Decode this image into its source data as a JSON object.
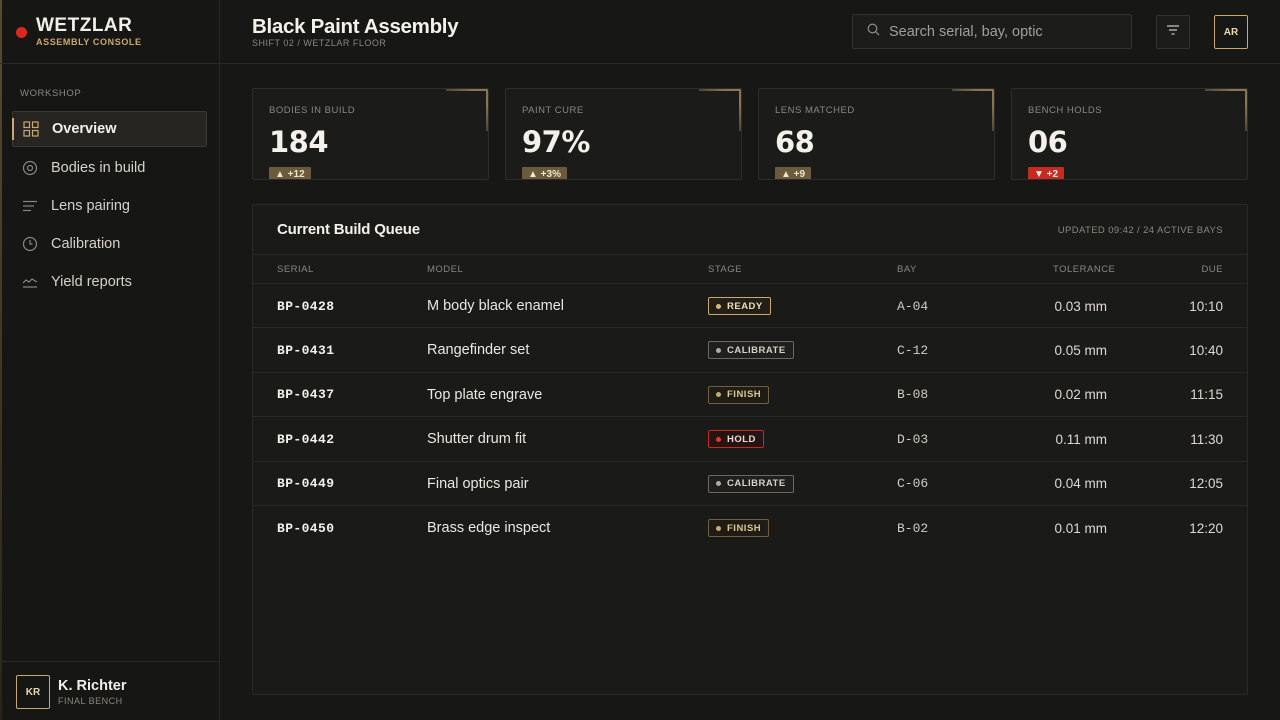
{
  "brand": {
    "name": "WETZLAR",
    "subtitle": "ASSEMBLY CONSOLE",
    "accent": "#c9a96e",
    "dot_color": "#d9281f"
  },
  "sidebar": {
    "section": "WORKSHOP",
    "items": [
      {
        "label": "Overview",
        "icon": "grid-icon",
        "active": true
      },
      {
        "label": "Bodies in build",
        "icon": "target-icon",
        "active": false
      },
      {
        "label": "Lens pairing",
        "icon": "lines-icon",
        "active": false
      },
      {
        "label": "Calibration",
        "icon": "clock-icon",
        "active": false
      },
      {
        "label": "Yield reports",
        "icon": "wave-chart-icon",
        "active": false
      }
    ],
    "user": {
      "initials": "KR",
      "name": "K. Richter",
      "role": "FINAL BENCH"
    }
  },
  "header": {
    "title": "Black Paint Assembly",
    "subtitle": "SHIFT 02 / WETZLAR FLOOR",
    "search_placeholder": "Search serial, bay, optic",
    "avatar_initials": "AR"
  },
  "kpis": [
    {
      "label": "BODIES IN BUILD",
      "value": "184",
      "delta": "▲ +12",
      "trend": "up"
    },
    {
      "label": "PAINT CURE",
      "value": "97%",
      "delta": "▲ +3%",
      "trend": "up"
    },
    {
      "label": "LENS MATCHED",
      "value": "68",
      "delta": "▲ +9",
      "trend": "up"
    },
    {
      "label": "BENCH HOLDS",
      "value": "06",
      "delta": "▼ +2",
      "trend": "down"
    }
  ],
  "queue": {
    "title": "Current Build Queue",
    "meta": "UPDATED 09:42 / 24 ACTIVE BAYS",
    "columns": {
      "serial": "SERIAL",
      "model": "MODEL",
      "stage": "STAGE",
      "bay": "BAY",
      "tolerance": "TOLERANCE",
      "due": "DUE"
    },
    "rows": [
      {
        "serial": "BP-0428",
        "model": "M body black enamel",
        "stage": "READY",
        "stage_type": "ready",
        "bay": "A-04",
        "tolerance": "0.03 mm",
        "due": "10:10"
      },
      {
        "serial": "BP-0431",
        "model": "Rangefinder set",
        "stage": "CALIBRATE",
        "stage_type": "calibrate",
        "bay": "C-12",
        "tolerance": "0.05 mm",
        "due": "10:40"
      },
      {
        "serial": "BP-0437",
        "model": "Top plate engrave",
        "stage": "FINISH",
        "stage_type": "finish",
        "bay": "B-08",
        "tolerance": "0.02 mm",
        "due": "11:15"
      },
      {
        "serial": "BP-0442",
        "model": "Shutter drum fit",
        "stage": "HOLD",
        "stage_type": "hold",
        "bay": "D-03",
        "tolerance": "0.11 mm",
        "due": "11:30"
      },
      {
        "serial": "BP-0449",
        "model": "Final optics pair",
        "stage": "CALIBRATE",
        "stage_type": "calibrate",
        "bay": "C-06",
        "tolerance": "0.04 mm",
        "due": "12:05"
      },
      {
        "serial": "BP-0450",
        "model": "Brass edge inspect",
        "stage": "FINISH",
        "stage_type": "finish",
        "bay": "B-02",
        "tolerance": "0.01 mm",
        "due": "12:20"
      }
    ]
  }
}
